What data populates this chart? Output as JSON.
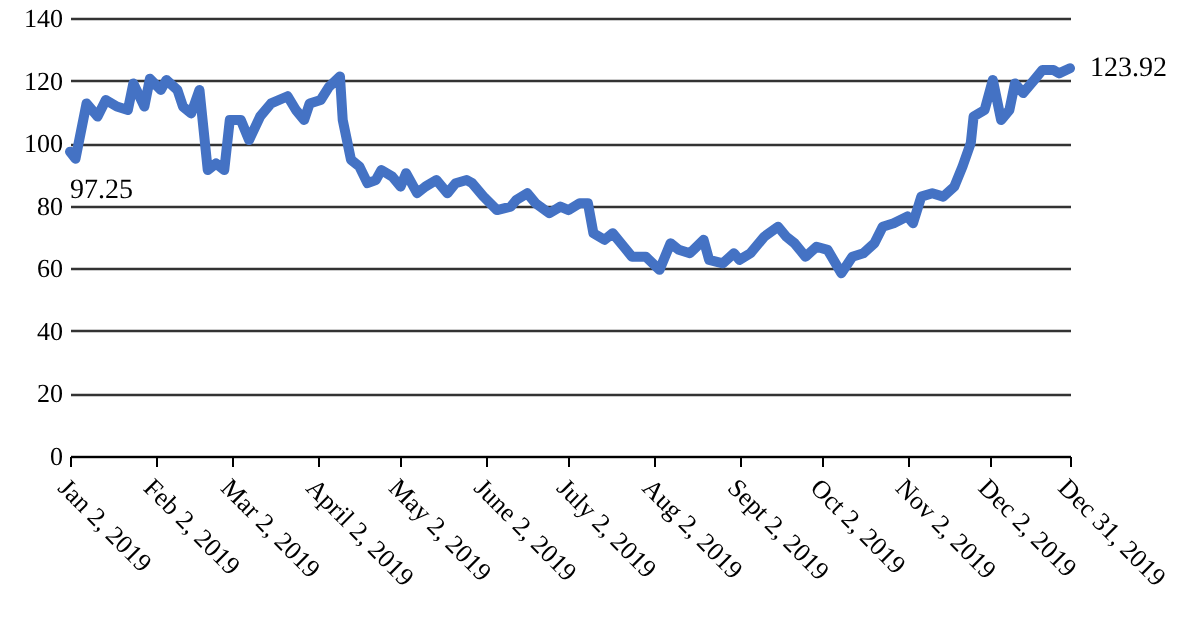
{
  "chart_data": {
    "type": "line",
    "x": [
      "2019-01-02",
      "2019-01-04",
      "2019-01-08",
      "2019-01-12",
      "2019-01-15",
      "2019-01-19",
      "2019-01-23",
      "2019-01-25",
      "2019-01-29",
      "2019-01-31",
      "2019-02-04",
      "2019-02-06",
      "2019-02-10",
      "2019-02-12",
      "2019-02-15",
      "2019-02-18",
      "2019-02-21",
      "2019-02-24",
      "2019-02-27",
      "2019-03-01",
      "2019-03-05",
      "2019-03-08",
      "2019-03-12",
      "2019-03-16",
      "2019-03-22",
      "2019-03-25",
      "2019-03-28",
      "2019-03-30",
      "2019-04-03",
      "2019-04-06",
      "2019-04-10",
      "2019-04-11",
      "2019-04-14",
      "2019-04-17",
      "2019-04-20",
      "2019-04-23",
      "2019-04-25",
      "2019-04-29",
      "2019-05-02",
      "2019-05-04",
      "2019-05-08",
      "2019-05-11",
      "2019-05-15",
      "2019-05-19",
      "2019-05-22",
      "2019-05-26",
      "2019-05-28",
      "2019-06-01",
      "2019-06-06",
      "2019-06-11",
      "2019-06-13",
      "2019-06-17",
      "2019-06-20",
      "2019-06-25",
      "2019-06-29",
      "2019-07-02",
      "2019-07-06",
      "2019-07-09",
      "2019-07-11",
      "2019-07-15",
      "2019-07-18",
      "2019-07-22",
      "2019-07-25",
      "2019-07-30",
      "2019-08-04",
      "2019-08-08",
      "2019-08-11",
      "2019-08-15",
      "2019-08-20",
      "2019-08-22",
      "2019-08-27",
      "2019-08-31",
      "2019-09-02",
      "2019-09-06",
      "2019-09-11",
      "2019-09-16",
      "2019-09-19",
      "2019-09-22",
      "2019-09-26",
      "2019-09-30",
      "2019-10-04",
      "2019-10-09",
      "2019-10-13",
      "2019-10-17",
      "2019-10-21",
      "2019-10-24",
      "2019-10-28",
      "2019-11-02",
      "2019-11-04",
      "2019-11-07",
      "2019-11-11",
      "2019-11-15",
      "2019-11-19",
      "2019-11-22",
      "2019-11-25",
      "2019-11-26",
      "2019-11-30",
      "2019-12-03",
      "2019-12-06",
      "2019-12-09",
      "2019-12-11",
      "2019-12-14",
      "2019-12-18",
      "2019-12-21",
      "2019-12-25",
      "2019-12-27",
      "2019-12-31"
    ],
    "series": [
      {
        "color": "#4472c4",
        "values": [
          97.25,
          95,
          112.7,
          108.5,
          113.8,
          111.7,
          110.6,
          119.1,
          111.7,
          120.6,
          117,
          120.2,
          117,
          111.7,
          109.5,
          117,
          91.4,
          93.5,
          91.4,
          107.4,
          107.4,
          101,
          108.5,
          112.7,
          115,
          110.6,
          107.4,
          112.7,
          113.8,
          118,
          121.3,
          107.4,
          94.7,
          92.6,
          87.2,
          88.2,
          91.4,
          89.3,
          86.1,
          90.4,
          84,
          86.1,
          88.2,
          84,
          87.2,
          88.2,
          87.2,
          83,
          78.6,
          79.7,
          81.8,
          84,
          80.8,
          77.6,
          79.7,
          78.6,
          80.8,
          80.8,
          71.2,
          69.1,
          71.2,
          66.9,
          63.7,
          63.7,
          59.5,
          68,
          65.9,
          64.8,
          69.1,
          62.7,
          61.6,
          64.8,
          62.7,
          64.8,
          70.1,
          73.3,
          70.1,
          68,
          63.7,
          66.9,
          65.9,
          58.4,
          63.7,
          64.8,
          68,
          73.3,
          74.4,
          76.6,
          74.4,
          82.9,
          84,
          82.9,
          86.1,
          92.6,
          100.1,
          108.5,
          110.6,
          120.2,
          107.4,
          110.6,
          119.1,
          116,
          120.2,
          123.4,
          123.4,
          122.3,
          123.92
        ]
      }
    ],
    "xlim": [
      "2019-01-02",
      "2019-12-31"
    ],
    "xticks": [
      {
        "value": "2019-01-02",
        "label": "Jan 2, 2019"
      },
      {
        "value": "2019-02-02",
        "label": "Feb 2, 2019"
      },
      {
        "value": "2019-03-02",
        "label": "Mar 2, 2019"
      },
      {
        "value": "2019-04-02",
        "label": "April 2, 2019"
      },
      {
        "value": "2019-05-02",
        "label": "May 2, 2019"
      },
      {
        "value": "2019-06-02",
        "label": "June 2, 2019"
      },
      {
        "value": "2019-07-02",
        "label": "July 2, 2019"
      },
      {
        "value": "2019-08-02",
        "label": "Aug 2, 2019"
      },
      {
        "value": "2019-09-02",
        "label": "Sept 2, 2019"
      },
      {
        "value": "2019-10-02",
        "label": "Oct 2, 2019"
      },
      {
        "value": "2019-11-02",
        "label": "Nov 2, 2019"
      },
      {
        "value": "2019-12-02",
        "label": "Dec 2, 2019"
      },
      {
        "value": "2019-12-31",
        "label": "Dec 31, 2019"
      }
    ],
    "ylim": [
      0,
      140
    ],
    "yticks": [
      0,
      20,
      40,
      60,
      80,
      100,
      120,
      140
    ],
    "grid": "y",
    "annotations": [
      {
        "text": "97.25",
        "x": "2019-01-02",
        "y": 97.25
      },
      {
        "text": "123.92",
        "x": "2019-12-31",
        "y": 123.92
      }
    ]
  }
}
